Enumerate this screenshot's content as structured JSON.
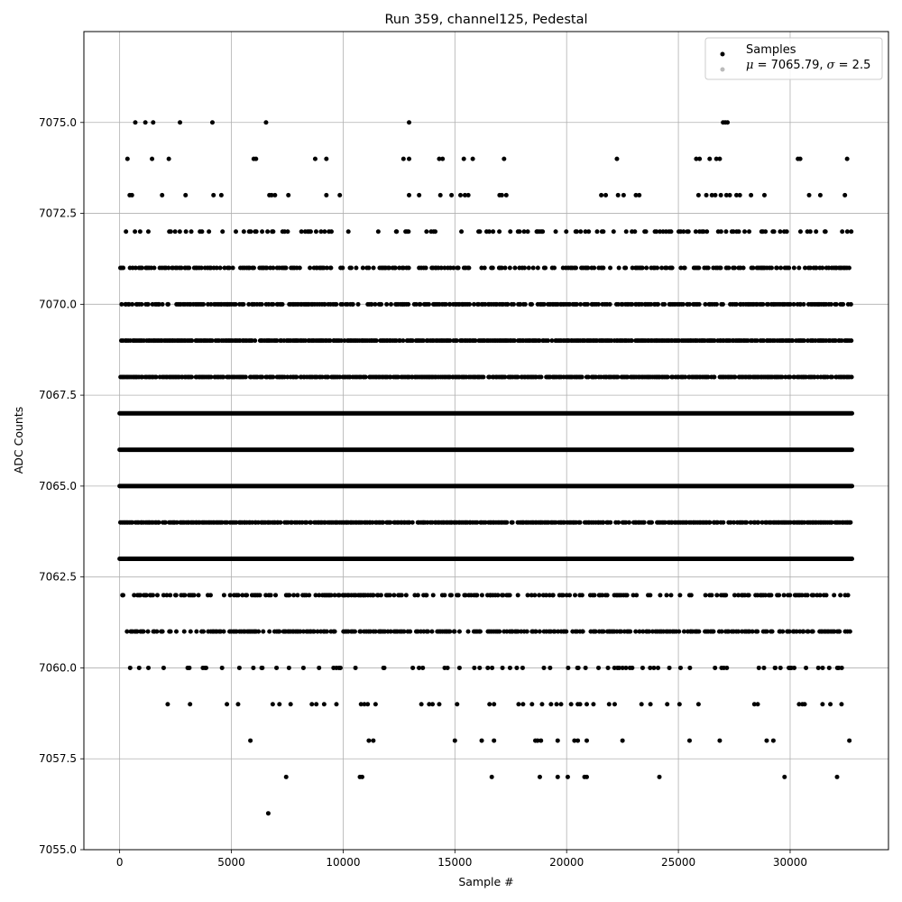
{
  "chart_data": {
    "type": "scatter",
    "title": "Run 359, channel125, Pedestal",
    "xlabel": "Sample #",
    "ylabel": "ADC Counts",
    "xlim": [
      -1600,
      34400
    ],
    "ylim": [
      7055.0,
      7077.5
    ],
    "xticks": [
      0,
      5000,
      10000,
      15000,
      20000,
      25000,
      30000
    ],
    "xtick_labels": [
      "0",
      "5000",
      "10000",
      "15000",
      "20000",
      "25000",
      "30000"
    ],
    "yticks": [
      7055.0,
      7057.5,
      7060.0,
      7062.5,
      7065.0,
      7067.5,
      7070.0,
      7072.5,
      7075.0
    ],
    "ytick_labels": [
      "7055.0",
      "7057.5",
      "7060.0",
      "7062.5",
      "7065.0",
      "7067.5",
      "7070.0",
      "7072.5",
      "7075.0"
    ],
    "grid": true,
    "legend_position": "top-right",
    "legend": {
      "series_label": "Samples",
      "stats_prefix_mu": "μ",
      "stats_mid_text": " = 7065.79, ",
      "stats_prefix_sigma": "σ",
      "stats_end_text": " = 2.5"
    },
    "marker_color": "#000000",
    "sample_range": [
      0,
      32767
    ],
    "series": [
      {
        "level_density": [
          {
            "y": 7056,
            "fill": 0.0
          },
          {
            "y": 7057,
            "fill": 0.0
          },
          {
            "y": 7058,
            "fill": 0.0
          },
          {
            "y": 7059,
            "fill": 0.0
          },
          {
            "y": 7060,
            "fill": 0.2
          },
          {
            "y": 7061,
            "fill": 0.6
          },
          {
            "y": 7062,
            "fill": 0.45
          },
          {
            "y": 7063,
            "fill": 0.97
          },
          {
            "y": 7064,
            "fill": 0.85
          },
          {
            "y": 7065,
            "fill": 1.0
          },
          {
            "y": 7066,
            "fill": 1.0
          },
          {
            "y": 7067,
            "fill": 1.0
          },
          {
            "y": 7068,
            "fill": 0.9
          },
          {
            "y": 7069,
            "fill": 0.9
          },
          {
            "y": 7070,
            "fill": 0.7
          },
          {
            "y": 7071,
            "fill": 0.5
          },
          {
            "y": 7072,
            "fill": 0.25
          },
          {
            "y": 7073,
            "fill": 0.0
          },
          {
            "y": 7074,
            "fill": 0.0
          },
          {
            "y": 7075,
            "fill": 0.0
          }
        ],
        "outliers": [
          [
            6650,
            7056
          ],
          [
            7450,
            7057
          ],
          [
            10750,
            7057
          ],
          [
            10850,
            7057
          ],
          [
            16650,
            7057
          ],
          [
            18800,
            7057
          ],
          [
            19600,
            7057
          ],
          [
            20050,
            7057
          ],
          [
            20800,
            7057
          ],
          [
            20900,
            7057
          ],
          [
            24150,
            7057
          ],
          [
            29750,
            7057
          ],
          [
            32100,
            7057
          ],
          [
            5850,
            7058
          ],
          [
            11150,
            7058
          ],
          [
            11350,
            7058
          ],
          [
            15000,
            7058
          ],
          [
            16200,
            7058
          ],
          [
            16750,
            7058
          ],
          [
            18600,
            7058
          ],
          [
            18700,
            7058
          ],
          [
            18850,
            7058
          ],
          [
            19600,
            7058
          ],
          [
            20350,
            7058
          ],
          [
            20500,
            7058
          ],
          [
            20900,
            7058
          ],
          [
            22500,
            7058
          ],
          [
            25500,
            7058
          ],
          [
            26850,
            7058
          ],
          [
            28950,
            7058
          ],
          [
            29250,
            7058
          ],
          [
            32650,
            7058
          ],
          [
            2150,
            7059
          ],
          [
            3150,
            7059
          ],
          [
            4800,
            7059
          ],
          [
            5300,
            7059
          ],
          [
            6850,
            7059
          ],
          [
            7150,
            7059
          ],
          [
            7650,
            7059
          ],
          [
            8600,
            7059
          ],
          [
            8800,
            7059
          ],
          [
            9150,
            7059
          ],
          [
            9700,
            7059
          ],
          [
            10800,
            7059
          ],
          [
            10950,
            7059
          ],
          [
            11100,
            7059
          ],
          [
            11450,
            7059
          ],
          [
            13500,
            7059
          ],
          [
            13850,
            7059
          ],
          [
            14000,
            7059
          ],
          [
            14300,
            7059
          ],
          [
            15100,
            7059
          ],
          [
            16550,
            7059
          ],
          [
            16750,
            7059
          ],
          [
            17850,
            7059
          ],
          [
            18050,
            7059
          ],
          [
            18450,
            7059
          ],
          [
            18900,
            7059
          ],
          [
            19300,
            7059
          ],
          [
            19550,
            7059
          ],
          [
            19750,
            7059
          ],
          [
            20200,
            7059
          ],
          [
            20500,
            7059
          ],
          [
            20600,
            7059
          ],
          [
            20900,
            7059
          ],
          [
            21200,
            7059
          ],
          [
            21900,
            7059
          ],
          [
            22150,
            7059
          ],
          [
            23350,
            7059
          ],
          [
            23750,
            7059
          ],
          [
            24500,
            7059
          ],
          [
            25050,
            7059
          ],
          [
            25900,
            7059
          ],
          [
            28400,
            7059
          ],
          [
            28550,
            7059
          ],
          [
            30400,
            7059
          ],
          [
            30550,
            7059
          ],
          [
            30650,
            7059
          ],
          [
            31450,
            7059
          ],
          [
            31800,
            7059
          ],
          [
            32300,
            7059
          ],
          [
            350,
            7074
          ],
          [
            1450,
            7074
          ],
          [
            2200,
            7074
          ],
          [
            6000,
            7074
          ],
          [
            6100,
            7074
          ],
          [
            8750,
            7074
          ],
          [
            9250,
            7074
          ],
          [
            12700,
            7074
          ],
          [
            12950,
            7074
          ],
          [
            14300,
            7074
          ],
          [
            14450,
            7074
          ],
          [
            15400,
            7074
          ],
          [
            15800,
            7074
          ],
          [
            17200,
            7074
          ],
          [
            22250,
            7074
          ],
          [
            25800,
            7074
          ],
          [
            25950,
            7074
          ],
          [
            26400,
            7074
          ],
          [
            26700,
            7074
          ],
          [
            26850,
            7074
          ],
          [
            30350,
            7074
          ],
          [
            30450,
            7074
          ],
          [
            32550,
            7074
          ],
          [
            450,
            7073
          ],
          [
            550,
            7073
          ],
          [
            1900,
            7073
          ],
          [
            2950,
            7073
          ],
          [
            4200,
            7073
          ],
          [
            4550,
            7073
          ],
          [
            6700,
            7073
          ],
          [
            6800,
            7073
          ],
          [
            6950,
            7073
          ],
          [
            7550,
            7073
          ],
          [
            9250,
            7073
          ],
          [
            9850,
            7073
          ],
          [
            12950,
            7073
          ],
          [
            13400,
            7073
          ],
          [
            14350,
            7073
          ],
          [
            14850,
            7073
          ],
          [
            15250,
            7073
          ],
          [
            15450,
            7073
          ],
          [
            15600,
            7073
          ],
          [
            17000,
            7073
          ],
          [
            17100,
            7073
          ],
          [
            17300,
            7073
          ],
          [
            21550,
            7073
          ],
          [
            21750,
            7073
          ],
          [
            22300,
            7073
          ],
          [
            22550,
            7073
          ],
          [
            23100,
            7073
          ],
          [
            23250,
            7073
          ],
          [
            25900,
            7073
          ],
          [
            26250,
            7073
          ],
          [
            26500,
            7073
          ],
          [
            26650,
            7073
          ],
          [
            26900,
            7073
          ],
          [
            27150,
            7073
          ],
          [
            27300,
            7073
          ],
          [
            27600,
            7073
          ],
          [
            27750,
            7073
          ],
          [
            28250,
            7073
          ],
          [
            28850,
            7073
          ],
          [
            30850,
            7073
          ],
          [
            31350,
            7073
          ],
          [
            32450,
            7073
          ],
          [
            700,
            7075
          ],
          [
            1150,
            7075
          ],
          [
            1500,
            7075
          ],
          [
            2700,
            7075
          ],
          [
            4150,
            7075
          ],
          [
            6550,
            7075
          ],
          [
            12950,
            7075
          ],
          [
            27000,
            7075
          ],
          [
            27100,
            7075
          ],
          [
            27200,
            7075
          ]
        ]
      }
    ]
  }
}
